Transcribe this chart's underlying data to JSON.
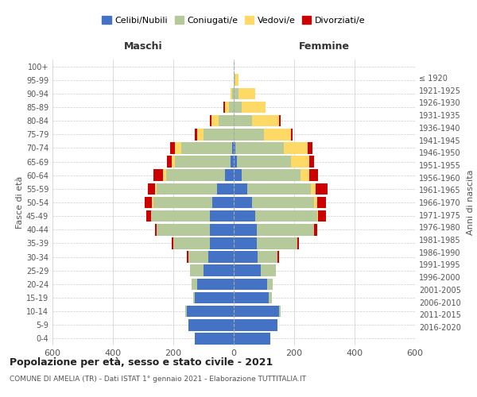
{
  "age_groups": [
    "0-4",
    "5-9",
    "10-14",
    "15-19",
    "20-24",
    "25-29",
    "30-34",
    "35-39",
    "40-44",
    "45-49",
    "50-54",
    "55-59",
    "60-64",
    "65-69",
    "70-74",
    "75-79",
    "80-84",
    "85-89",
    "90-94",
    "95-99",
    "100+"
  ],
  "birth_years": [
    "2016-2020",
    "2011-2015",
    "2006-2010",
    "2001-2005",
    "1996-2000",
    "1991-1995",
    "1986-1990",
    "1981-1985",
    "1976-1980",
    "1971-1975",
    "1966-1970",
    "1961-1965",
    "1956-1960",
    "1951-1955",
    "1946-1950",
    "1941-1945",
    "1936-1940",
    "1931-1935",
    "1926-1930",
    "1921-1925",
    "≤ 1920"
  ],
  "males": {
    "celibi": [
      130,
      150,
      155,
      130,
      120,
      100,
      85,
      80,
      80,
      80,
      70,
      55,
      30,
      10,
      5,
      0,
      0,
      0,
      0,
      0,
      0
    ],
    "coniugati": [
      0,
      0,
      5,
      5,
      20,
      45,
      65,
      120,
      175,
      195,
      195,
      200,
      195,
      185,
      170,
      100,
      50,
      15,
      5,
      0,
      0
    ],
    "vedovi": [
      0,
      0,
      0,
      0,
      0,
      0,
      0,
      0,
      0,
      0,
      5,
      5,
      10,
      10,
      20,
      20,
      25,
      15,
      5,
      0,
      0
    ],
    "divorziati": [
      0,
      0,
      0,
      0,
      0,
      0,
      5,
      5,
      5,
      15,
      25,
      25,
      30,
      15,
      15,
      10,
      5,
      5,
      0,
      0,
      0
    ]
  },
  "females": {
    "nubili": [
      120,
      145,
      150,
      115,
      110,
      90,
      80,
      75,
      75,
      70,
      60,
      45,
      25,
      10,
      5,
      0,
      0,
      0,
      0,
      0,
      0
    ],
    "coniugate": [
      0,
      0,
      5,
      10,
      20,
      50,
      65,
      135,
      190,
      205,
      205,
      210,
      195,
      180,
      160,
      100,
      60,
      25,
      15,
      5,
      0
    ],
    "vedove": [
      0,
      0,
      0,
      0,
      0,
      0,
      0,
      0,
      0,
      5,
      10,
      15,
      30,
      60,
      80,
      90,
      90,
      80,
      55,
      10,
      0
    ],
    "divorziate": [
      0,
      0,
      0,
      0,
      0,
      0,
      5,
      5,
      10,
      25,
      30,
      40,
      30,
      15,
      15,
      5,
      5,
      0,
      0,
      0,
      0
    ]
  },
  "colors": {
    "celibi": "#4472c4",
    "coniugati": "#b5c99a",
    "vedovi": "#ffd966",
    "divorziati": "#cc0000"
  },
  "title": "Popolazione per età, sesso e stato civile - 2021",
  "subtitle": "COMUNE DI AMELIA (TR) - Dati ISTAT 1° gennaio 2021 - Elaborazione TUTTITALIA.IT",
  "xlabel_left": "Maschi",
  "xlabel_right": "Femmine",
  "ylabel_left": "Fasce di età",
  "ylabel_right": "Anni di nascita",
  "xlim": 600,
  "background_color": "#ffffff",
  "grid_color": "#cccccc"
}
